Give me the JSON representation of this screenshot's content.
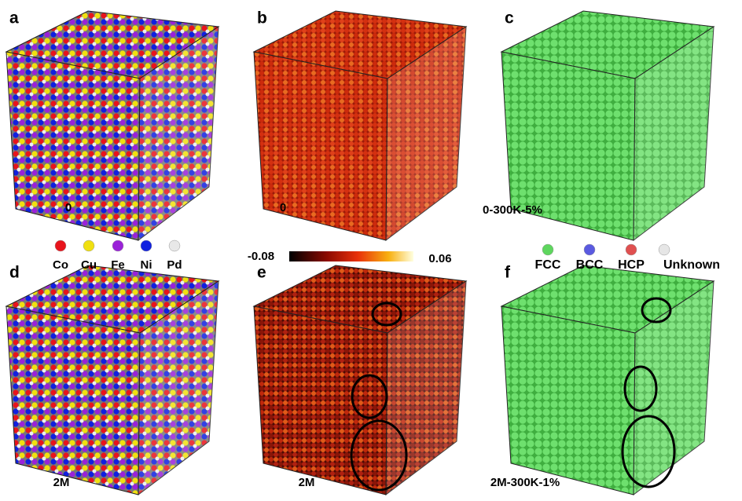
{
  "panels": [
    {
      "label": "a",
      "caption": "0"
    },
    {
      "label": "b",
      "caption": "0"
    },
    {
      "label": "c",
      "caption": "0-300K-5%"
    },
    {
      "label": "d",
      "caption": "2M"
    },
    {
      "label": "e",
      "caption": "2M"
    },
    {
      "label": "f",
      "caption": "2M-300K-1%"
    }
  ],
  "element_legend": [
    {
      "name": "Co",
      "color": "#e8141c"
    },
    {
      "name": "Cu",
      "color": "#f0e010"
    },
    {
      "name": "Fe",
      "color": "#9a22d8"
    },
    {
      "name": "Ni",
      "color": "#1020e0"
    },
    {
      "name": "Pd",
      "color": "#e8e8e8"
    }
  ],
  "colorbar": {
    "min": "-0.08",
    "max": "0.06"
  },
  "structure_legend": [
    {
      "name": "FCC",
      "color": "#5ed65e"
    },
    {
      "name": "BCC",
      "color": "#5a5ae0"
    },
    {
      "name": "HCP",
      "color": "#e05050"
    },
    {
      "name": "Unknown",
      "color": "#e6e6e6"
    }
  ]
}
